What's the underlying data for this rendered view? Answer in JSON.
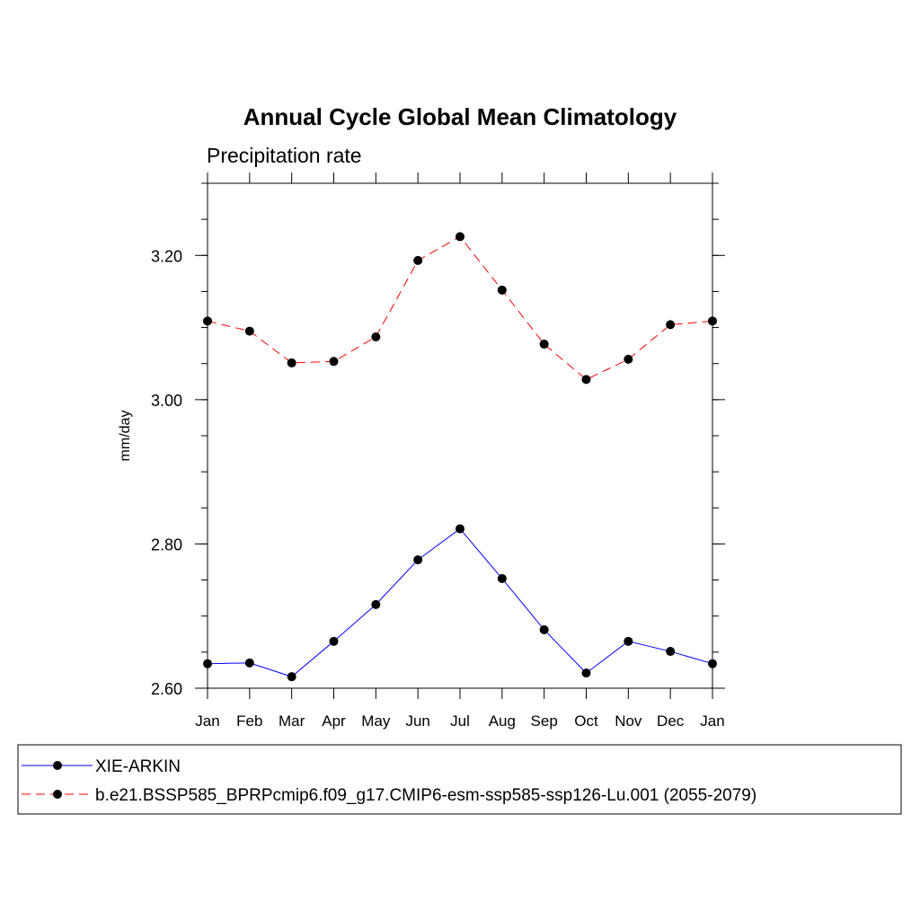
{
  "chart_data": {
    "type": "line",
    "title": "Annual Cycle Global Mean Climatology",
    "subtitle": "Precipitation rate",
    "ylabel": "mm/day",
    "xlabel": "",
    "categories": [
      "Jan",
      "Feb",
      "Mar",
      "Apr",
      "May",
      "Jun",
      "Jul",
      "Aug",
      "Sep",
      "Oct",
      "Nov",
      "Dec",
      "Jan"
    ],
    "ylim": [
      2.6,
      3.3
    ],
    "yticks": [
      2.6,
      2.8,
      3.0,
      3.2
    ],
    "ytick_labels": [
      "2.60",
      "2.80",
      "3.00",
      "3.20"
    ],
    "minor_tick_step": 0.05,
    "grid": false,
    "legend_position": "bottom",
    "series": [
      {
        "name": "XIE-ARKIN",
        "color": "#0000ff",
        "line_style": "solid",
        "marker": "filled-circle",
        "values": [
          2.634,
          2.635,
          2.616,
          2.665,
          2.716,
          2.778,
          2.821,
          2.752,
          2.681,
          2.621,
          2.665,
          2.651,
          2.634
        ]
      },
      {
        "name": "b.e21.BSSP585_BPRPcmip6.f09_g17.CMIP6-esm-ssp585-ssp126-Lu.001 (2055-2079)",
        "color": "#ff0000",
        "line_style": "dashed",
        "marker": "filled-circle",
        "values": [
          3.109,
          3.095,
          3.051,
          3.053,
          3.087,
          3.193,
          3.226,
          3.152,
          3.077,
          3.028,
          3.056,
          3.104,
          3.109
        ]
      }
    ]
  }
}
